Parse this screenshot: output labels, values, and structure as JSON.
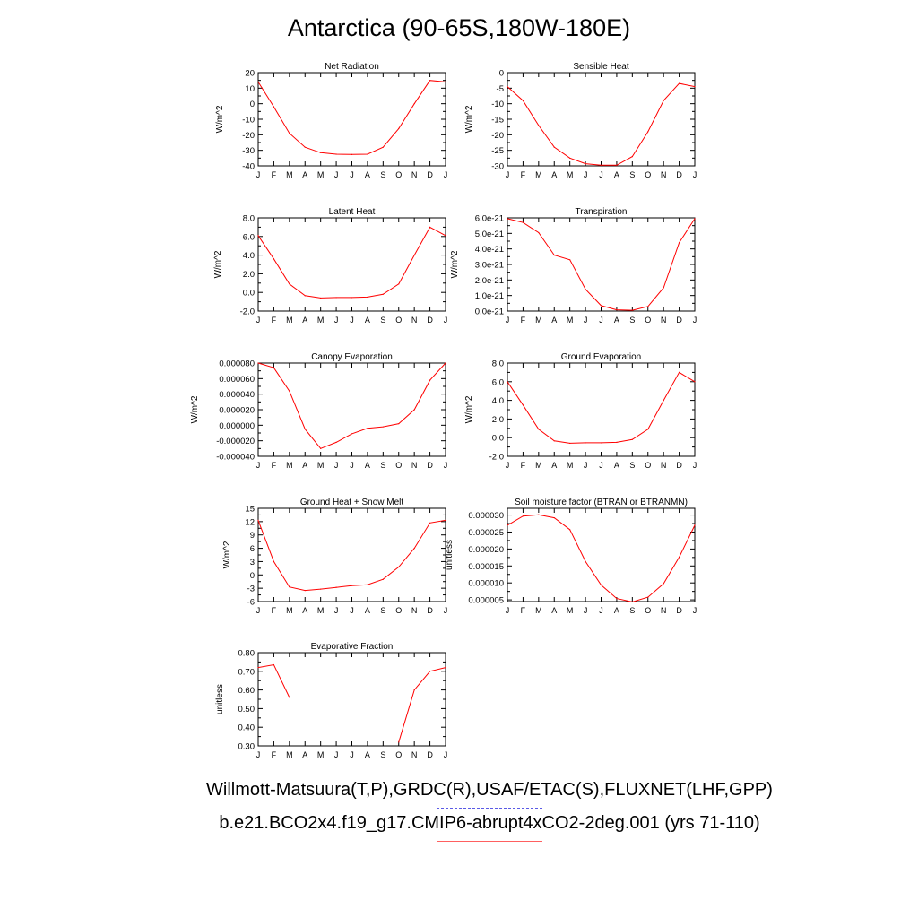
{
  "figure": {
    "title": "Antarctica (90-65S,180W-180E)",
    "obs_credit": "Willmott-Matsuura(T,P),GRDC(R),USAF/ETAC(S),FLUXNET(LHF,GPP)",
    "model_credit": "b.e21.BCO2x4.f19_g17.CMIP6-abrupt4xCO2-2deg.001 (yrs 71-110)",
    "series_color": "#ff0000",
    "obs_legend_color": "#5a5ae6"
  },
  "chart_data": [
    {
      "type": "line",
      "title": "Net Radiation",
      "ylabel": "W/m^2",
      "categories": [
        "J",
        "F",
        "M",
        "A",
        "M",
        "J",
        "J",
        "A",
        "S",
        "O",
        "N",
        "D",
        "J"
      ],
      "ylim": [
        -40,
        20
      ],
      "yticks": [
        20,
        10,
        0,
        -10,
        -20,
        -30,
        -40
      ],
      "yticklabels": [
        "20",
        "10",
        "0",
        "-10",
        "-20",
        "-30",
        "-40"
      ],
      "values": [
        14,
        -2,
        -19,
        -28,
        -31.5,
        -32.5,
        -32.7,
        -32.5,
        -28,
        -16,
        0,
        15,
        14
      ]
    },
    {
      "type": "line",
      "title": "Sensible Heat",
      "ylabel": "W/m^2",
      "categories": [
        "J",
        "F",
        "M",
        "A",
        "M",
        "J",
        "J",
        "A",
        "S",
        "O",
        "N",
        "D",
        "J"
      ],
      "ylim": [
        -30,
        0
      ],
      "yticks": [
        0,
        -5,
        -10,
        -15,
        -20,
        -25,
        -30
      ],
      "yticklabels": [
        "0",
        "-5",
        "-10",
        "-15",
        "-20",
        "-25",
        "-30"
      ],
      "values": [
        -4.5,
        -9,
        -17,
        -24,
        -27.5,
        -29.3,
        -29.8,
        -29.8,
        -27,
        -19,
        -9,
        -3.5,
        -4.5
      ]
    },
    {
      "type": "line",
      "title": "Latent Heat",
      "ylabel": "W/m^2",
      "categories": [
        "J",
        "F",
        "M",
        "A",
        "M",
        "J",
        "J",
        "A",
        "S",
        "O",
        "N",
        "D",
        "J"
      ],
      "ylim": [
        -2,
        8
      ],
      "yticks": [
        8,
        6,
        4,
        2,
        0,
        -2
      ],
      "yticklabels": [
        "8.0",
        "6.0",
        "4.0",
        "2.0",
        "0.0",
        "-2.0"
      ],
      "values": [
        6.1,
        3.6,
        0.9,
        -0.35,
        -0.6,
        -0.55,
        -0.55,
        -0.5,
        -0.2,
        0.9,
        4.0,
        7.0,
        6.1
      ]
    },
    {
      "type": "line",
      "title": "Transpiration",
      "ylabel": "W/m^2",
      "categories": [
        "J",
        "F",
        "M",
        "A",
        "M",
        "J",
        "J",
        "A",
        "S",
        "O",
        "N",
        "D",
        "J"
      ],
      "ylim": [
        0,
        6e-21
      ],
      "yticks": [
        6e-21,
        5e-21,
        4e-21,
        3e-21,
        2e-21,
        1e-21,
        0
      ],
      "yticklabels": [
        "6.0e-21",
        "5.0e-21",
        "4.0e-21",
        "3.0e-21",
        "2.0e-21",
        "1.0e-21",
        "0.0e-21"
      ],
      "values": [
        5.95e-21,
        5.7e-21,
        5.05e-21,
        3.6e-21,
        3.3e-21,
        1.4e-21,
        3.5e-22,
        8e-23,
        5e-23,
        3e-22,
        1.5e-21,
        4.4e-21,
        5.95e-21
      ]
    },
    {
      "type": "line",
      "title": "Canopy Evaporation",
      "ylabel": "W/m^2",
      "categories": [
        "J",
        "F",
        "M",
        "A",
        "M",
        "J",
        "J",
        "A",
        "S",
        "O",
        "N",
        "D",
        "J"
      ],
      "ylim": [
        -4e-05,
        8e-05
      ],
      "yticks": [
        8e-05,
        6e-05,
        4e-05,
        2e-05,
        0,
        -2e-05,
        -4e-05
      ],
      "yticklabels": [
        "0.000080",
        "0.000060",
        "0.000040",
        "0.000020",
        "0.000000",
        "-0.000020",
        "-0.000040"
      ],
      "values": [
        8e-05,
        7.4e-05,
        4.4e-05,
        -5e-06,
        -3e-05,
        -2.2e-05,
        -1.1e-05,
        -4e-06,
        -2e-06,
        2e-06,
        2e-05,
        5.8e-05,
        8e-05
      ]
    },
    {
      "type": "line",
      "title": "Ground Evaporation",
      "ylabel": "W/m^2",
      "categories": [
        "J",
        "F",
        "M",
        "A",
        "M",
        "J",
        "J",
        "A",
        "S",
        "O",
        "N",
        "D",
        "J"
      ],
      "ylim": [
        -2,
        8
      ],
      "yticks": [
        8,
        6,
        4,
        2,
        0,
        -2
      ],
      "yticklabels": [
        "8.0",
        "6.0",
        "4.0",
        "2.0",
        "0.0",
        "-2.0"
      ],
      "values": [
        6.0,
        3.5,
        0.9,
        -0.35,
        -0.6,
        -0.55,
        -0.55,
        -0.5,
        -0.2,
        0.9,
        4.0,
        7.0,
        6.0
      ]
    },
    {
      "type": "line",
      "title": "Ground Heat + Snow Melt",
      "ylabel": "W/m^2",
      "categories": [
        "J",
        "F",
        "M",
        "A",
        "M",
        "J",
        "J",
        "A",
        "S",
        "O",
        "N",
        "D",
        "J"
      ],
      "ylim": [
        -6,
        15
      ],
      "yticks": [
        15,
        12,
        9,
        6,
        3,
        0,
        -3,
        -6
      ],
      "yticklabels": [
        "15",
        "12",
        "9",
        "6",
        "3",
        "0",
        "-3",
        "-6"
      ],
      "values": [
        12.3,
        3,
        -2.7,
        -3.5,
        -3.2,
        -2.8,
        -2.4,
        -2.2,
        -1,
        1.8,
        6,
        11.7,
        12.3
      ]
    },
    {
      "type": "line",
      "title": "Soil moisture factor (BTRAN or BTRANMN)",
      "ylabel": "unitless",
      "categories": [
        "J",
        "F",
        "M",
        "A",
        "M",
        "J",
        "J",
        "A",
        "S",
        "O",
        "N",
        "D",
        "J"
      ],
      "ylim": [
        4.5e-06,
        3.2e-05
      ],
      "yticks": [
        3e-05,
        2.5e-05,
        2e-05,
        1.5e-05,
        1e-05,
        5e-06
      ],
      "yticklabels": [
        "0.000030",
        "0.000025",
        "0.000020",
        "0.000015",
        "0.000010",
        "0.000005"
      ],
      "values": [
        2.7e-05,
        2.97e-05,
        3.01e-05,
        2.92e-05,
        2.57e-05,
        1.63e-05,
        9.4e-06,
        5.4e-06,
        4.4e-06,
        5.8e-06,
        9.8e-06,
        1.76e-05,
        2.7e-05
      ]
    },
    {
      "type": "line",
      "title": "Evaporative Fraction",
      "ylabel": "unitless",
      "categories": [
        "J",
        "F",
        "M",
        "A",
        "M",
        "J",
        "J",
        "A",
        "S",
        "O",
        "N",
        "D",
        "J"
      ],
      "ylim": [
        0.3,
        0.8
      ],
      "yticks": [
        0.8,
        0.7,
        0.6,
        0.5,
        0.4,
        0.3
      ],
      "yticklabels": [
        "0.80",
        "0.70",
        "0.60",
        "0.50",
        "0.40",
        "0.30"
      ],
      "values": [
        0.72,
        0.735,
        0.56,
        null,
        null,
        null,
        null,
        null,
        null,
        0.32,
        0.6,
        0.7,
        0.72
      ]
    }
  ]
}
